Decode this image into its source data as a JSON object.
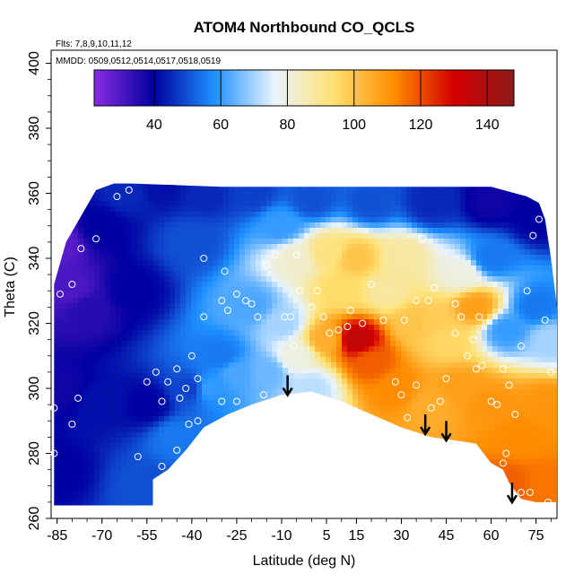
{
  "chart_data": {
    "type": "heatmap",
    "title": "ATOM4 Northbound CO_QCLS",
    "subtitle_flights": "Flts: 7,8,9,10,11,12",
    "subtitle_dates": "MMDD: 0509,0512,0514,0517,0518,0519",
    "xlabel": "Latitude (deg N)",
    "ylabel": "Theta (C)",
    "xlim": [
      -87,
      82
    ],
    "ylim": [
      260,
      404
    ],
    "x_ticks": [
      -85,
      -70,
      -55,
      -40,
      -25,
      -10,
      5,
      15,
      30,
      45,
      60,
      75
    ],
    "x_tick_labels": [
      "-85",
      "-70",
      "-55",
      "-40",
      "-25",
      "-10",
      "5",
      "15",
      "30",
      "45",
      "60",
      "75"
    ],
    "y_ticks": [
      260,
      280,
      300,
      320,
      340,
      360,
      380,
      400
    ],
    "y_tick_labels": [
      "260",
      "280",
      "300",
      "320",
      "340",
      "360",
      "380",
      "400"
    ],
    "colorbar": {
      "range": [
        22,
        148
      ],
      "ticks": [
        40,
        60,
        80,
        100,
        120,
        140
      ],
      "tick_labels": [
        "40",
        "60",
        "80",
        "100",
        "120",
        "140"
      ],
      "colors": [
        "#8a2be2",
        "#0000a0",
        "#1e90ff",
        "#e8f4ff",
        "#ffe070",
        "#ff8c00",
        "#d40000",
        "#8b1a1a"
      ]
    },
    "field_points": [
      [
        -85,
        345,
        28
      ],
      [
        -80,
        330,
        30
      ],
      [
        -75,
        325,
        35
      ],
      [
        -70,
        350,
        40
      ],
      [
        -62,
        360,
        45
      ],
      [
        -50,
        362,
        42
      ],
      [
        -35,
        360,
        45
      ],
      [
        -20,
        360,
        48
      ],
      [
        0,
        358,
        50
      ],
      [
        20,
        357,
        50
      ],
      [
        40,
        357,
        45
      ],
      [
        60,
        357,
        38
      ],
      [
        75,
        352,
        40
      ],
      [
        -85,
        300,
        38
      ],
      [
        -70,
        295,
        42
      ],
      [
        -55,
        295,
        40
      ],
      [
        -40,
        300,
        48
      ],
      [
        -30,
        310,
        55
      ],
      [
        -20,
        325,
        62
      ],
      [
        -10,
        320,
        70
      ],
      [
        -5,
        340,
        82
      ],
      [
        5,
        342,
        92
      ],
      [
        15,
        340,
        100
      ],
      [
        25,
        330,
        88
      ],
      [
        35,
        320,
        100
      ],
      [
        45,
        315,
        96
      ],
      [
        55,
        325,
        108
      ],
      [
        65,
        318,
        60
      ],
      [
        75,
        325,
        55
      ],
      [
        80,
        315,
        70
      ],
      [
        -85,
        275,
        40
      ],
      [
        -55,
        270,
        50
      ],
      [
        -45,
        285,
        55
      ],
      [
        -35,
        300,
        60
      ],
      [
        -25,
        305,
        62
      ],
      [
        -15,
        305,
        65
      ],
      [
        -5,
        310,
        80
      ],
      [
        5,
        315,
        105
      ],
      [
        15,
        315,
        135
      ],
      [
        20,
        308,
        118
      ],
      [
        28,
        300,
        112
      ],
      [
        40,
        295,
        105
      ],
      [
        50,
        300,
        108
      ],
      [
        60,
        295,
        110
      ],
      [
        70,
        285,
        112
      ],
      [
        78,
        270,
        115
      ],
      [
        78,
        295,
        110
      ],
      [
        65,
        270,
        118
      ],
      [
        40,
        320,
        98
      ],
      [
        50,
        335,
        80
      ],
      [
        30,
        340,
        88
      ],
      [
        60,
        340,
        55
      ],
      [
        -60,
        330,
        40
      ],
      [
        -40,
        345,
        50
      ],
      [
        -10,
        350,
        60
      ],
      [
        10,
        330,
        95
      ],
      [
        0,
        300,
        72
      ]
    ],
    "arrows_lat": [
      -8,
      38,
      45,
      67
    ],
    "obs_points": [
      [
        -84,
        329
      ],
      [
        -77,
        343
      ],
      [
        -80,
        332
      ],
      [
        -72,
        346
      ],
      [
        -65,
        359
      ],
      [
        -61,
        361
      ],
      [
        -86,
        294
      ],
      [
        -80,
        289
      ],
      [
        -78,
        297
      ],
      [
        -86,
        280
      ],
      [
        -58,
        279
      ],
      [
        -55,
        302
      ],
      [
        -52,
        305
      ],
      [
        -50,
        296
      ],
      [
        -48,
        302
      ],
      [
        -45,
        306
      ],
      [
        -44,
        297
      ],
      [
        -40,
        310
      ],
      [
        -38,
        303
      ],
      [
        -41,
        289
      ],
      [
        -45,
        281
      ],
      [
        -50,
        276
      ],
      [
        -38,
        290
      ],
      [
        -36,
        322
      ],
      [
        -30,
        327
      ],
      [
        -28,
        324
      ],
      [
        -25,
        329
      ],
      [
        -22,
        327
      ],
      [
        -20,
        326
      ],
      [
        -18,
        322
      ],
      [
        -12,
        341
      ],
      [
        -9,
        322
      ],
      [
        -7,
        322
      ],
      [
        -4,
        330
      ],
      [
        0,
        325
      ],
      [
        2,
        330
      ],
      [
        4,
        322
      ],
      [
        6,
        317
      ],
      [
        9,
        318
      ],
      [
        12,
        319
      ],
      [
        17,
        320
      ],
      [
        20,
        332
      ],
      [
        24,
        321
      ],
      [
        28,
        302
      ],
      [
        30,
        298
      ],
      [
        32,
        291
      ],
      [
        35,
        301
      ],
      [
        40,
        294
      ],
      [
        43,
        296
      ],
      [
        45,
        303
      ],
      [
        48,
        317
      ],
      [
        50,
        322
      ],
      [
        52,
        310
      ],
      [
        54,
        315
      ],
      [
        56,
        322
      ],
      [
        57,
        307
      ],
      [
        60,
        296
      ],
      [
        62,
        295
      ],
      [
        64,
        306
      ],
      [
        66,
        301
      ],
      [
        68,
        292
      ],
      [
        70,
        313
      ],
      [
        72,
        330
      ],
      [
        74,
        347
      ],
      [
        76,
        352
      ],
      [
        78,
        321
      ],
      [
        80,
        305
      ],
      [
        70,
        268
      ],
      [
        73,
        268
      ],
      [
        64,
        277
      ],
      [
        65,
        280
      ],
      [
        79,
        265
      ],
      [
        37,
        346
      ],
      [
        31,
        321
      ],
      [
        -36,
        340
      ],
      [
        -29,
        336
      ],
      [
        -5,
        341
      ],
      [
        -6,
        313
      ],
      [
        55,
        306
      ],
      [
        48,
        326
      ],
      [
        41,
        331
      ],
      [
        39,
        327
      ],
      [
        35,
        327
      ],
      [
        -15,
        338
      ],
      [
        13,
        324
      ],
      [
        -42,
        300
      ],
      [
        -30,
        296
      ],
      [
        -25,
        296
      ],
      [
        -16,
        298
      ],
      [
        -2,
        297
      ]
    ]
  }
}
